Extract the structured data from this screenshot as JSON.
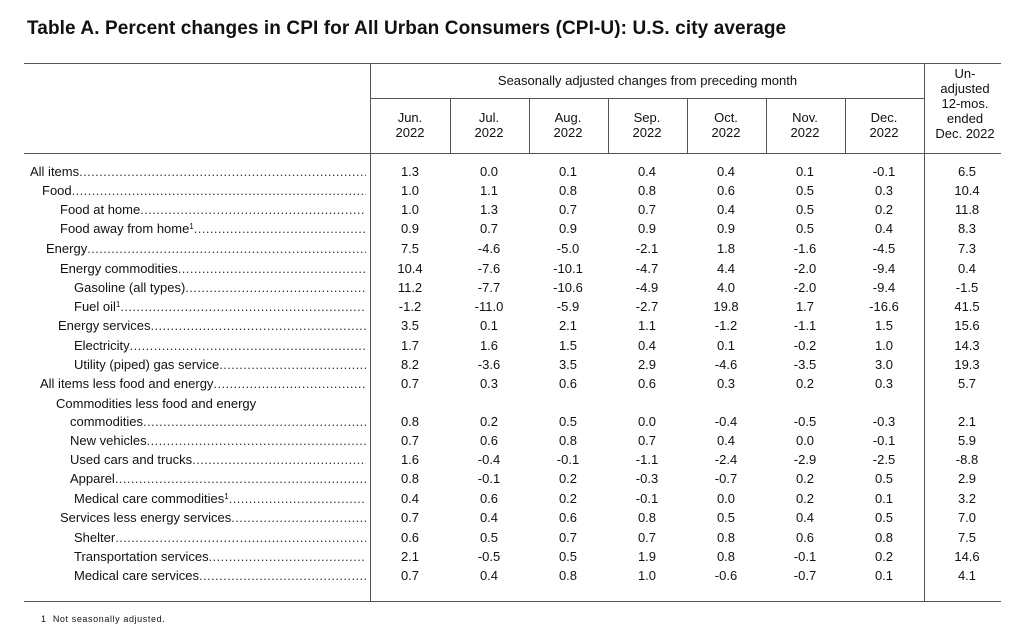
{
  "title": "Table A. Percent changes in CPI for All Urban Consumers (CPI-U): U.S. city average",
  "header": {
    "seasonal_span": "Seasonally adjusted changes from preceding month",
    "months": [
      {
        "m": "Jun.",
        "y": "2022"
      },
      {
        "m": "Jul.",
        "y": "2022"
      },
      {
        "m": "Aug.",
        "y": "2022"
      },
      {
        "m": "Sep.",
        "y": "2022"
      },
      {
        "m": "Oct.",
        "y": "2022"
      },
      {
        "m": "Nov.",
        "y": "2022"
      },
      {
        "m": "Dec.",
        "y": "2022"
      }
    ],
    "unadjusted": [
      "Un-",
      "adjusted",
      "12-mos.",
      "ended",
      "Dec. 2022"
    ]
  },
  "rows": [
    {
      "label": "All items",
      "sup": "",
      "values": [
        "1.3",
        "0.0",
        "0.1",
        "0.4",
        "0.4",
        "0.1",
        "-0.1",
        "6.5"
      ]
    },
    {
      "label": "Food",
      "sup": "",
      "values": [
        "1.0",
        "1.1",
        "0.8",
        "0.8",
        "0.6",
        "0.5",
        "0.3",
        "10.4"
      ]
    },
    {
      "label": "Food at home",
      "sup": "",
      "values": [
        "1.0",
        "1.3",
        "0.7",
        "0.7",
        "0.4",
        "0.5",
        "0.2",
        "11.8"
      ]
    },
    {
      "label": "Food away from home",
      "sup": "1",
      "values": [
        "0.9",
        "0.7",
        "0.9",
        "0.9",
        "0.9",
        "0.5",
        "0.4",
        "8.3"
      ]
    },
    {
      "label": "Energy",
      "sup": "",
      "values": [
        "7.5",
        "-4.6",
        "-5.0",
        "-2.1",
        "1.8",
        "-1.6",
        "-4.5",
        "7.3"
      ]
    },
    {
      "label": "Energy commodities",
      "sup": "",
      "values": [
        "10.4",
        "-7.6",
        "-10.1",
        "-4.7",
        "4.4",
        "-2.0",
        "-9.4",
        "0.4"
      ]
    },
    {
      "label": "Gasoline (all types)",
      "sup": "",
      "values": [
        "11.2",
        "-7.7",
        "-10.6",
        "-4.9",
        "4.0",
        "-2.0",
        "-9.4",
        "-1.5"
      ]
    },
    {
      "label": "Fuel oil",
      "sup": "1",
      "values": [
        "-1.2",
        "-11.0",
        "-5.9",
        "-2.7",
        "19.8",
        "1.7",
        "-16.6",
        "41.5"
      ]
    },
    {
      "label": "Energy services",
      "sup": "",
      "values": [
        "3.5",
        "0.1",
        "2.1",
        "1.1",
        "-1.2",
        "-1.1",
        "1.5",
        "15.6"
      ]
    },
    {
      "label": "Electricity",
      "sup": "",
      "values": [
        "1.7",
        "1.6",
        "1.5",
        "0.4",
        "0.1",
        "-0.2",
        "1.0",
        "14.3"
      ]
    },
    {
      "label": "Utility (piped) gas service",
      "sup": "",
      "values": [
        "8.2",
        "-3.6",
        "3.5",
        "2.9",
        "-4.6",
        "-3.5",
        "3.0",
        "19.3"
      ]
    },
    {
      "label": "All items less food and energy",
      "sup": "",
      "values": [
        "0.7",
        "0.3",
        "0.6",
        "0.6",
        "0.3",
        "0.2",
        "0.3",
        "5.7"
      ]
    },
    {
      "label": "Commodities less food and energy",
      "label2": "commodities",
      "sup": "",
      "values": [
        "0.8",
        "0.2",
        "0.5",
        "0.0",
        "-0.4",
        "-0.5",
        "-0.3",
        "2.1"
      ]
    },
    {
      "label": "New vehicles",
      "sup": "",
      "values": [
        "0.7",
        "0.6",
        "0.8",
        "0.7",
        "0.4",
        "0.0",
        "-0.1",
        "5.9"
      ]
    },
    {
      "label": "Used cars and trucks",
      "sup": "",
      "values": [
        "1.6",
        "-0.4",
        "-0.1",
        "-1.1",
        "-2.4",
        "-2.9",
        "-2.5",
        "-8.8"
      ]
    },
    {
      "label": "Apparel",
      "sup": "",
      "values": [
        "0.8",
        "-0.1",
        "0.2",
        "-0.3",
        "-0.7",
        "0.2",
        "0.5",
        "2.9"
      ]
    },
    {
      "label": "Medical care commodities",
      "sup": "1",
      "values": [
        "0.4",
        "0.6",
        "0.2",
        "-0.1",
        "0.0",
        "0.2",
        "0.1",
        "3.2"
      ]
    },
    {
      "label": "Services less energy services",
      "sup": "",
      "values": [
        "0.7",
        "0.4",
        "0.6",
        "0.8",
        "0.5",
        "0.4",
        "0.5",
        "7.0"
      ]
    },
    {
      "label": "Shelter",
      "sup": "",
      "values": [
        "0.6",
        "0.5",
        "0.7",
        "0.7",
        "0.8",
        "0.6",
        "0.8",
        "7.5"
      ]
    },
    {
      "label": "Transportation services",
      "sup": "",
      "values": [
        "2.1",
        "-0.5",
        "0.5",
        "1.9",
        "0.8",
        "-0.1",
        "0.2",
        "14.6"
      ]
    },
    {
      "label": "Medical care services",
      "sup": "",
      "values": [
        "0.7",
        "0.4",
        "0.8",
        "1.0",
        "-0.6",
        "-0.7",
        "0.1",
        "4.1"
      ]
    }
  ],
  "footnote": {
    "mark": "1",
    "text": "Not seasonally adjusted."
  }
}
